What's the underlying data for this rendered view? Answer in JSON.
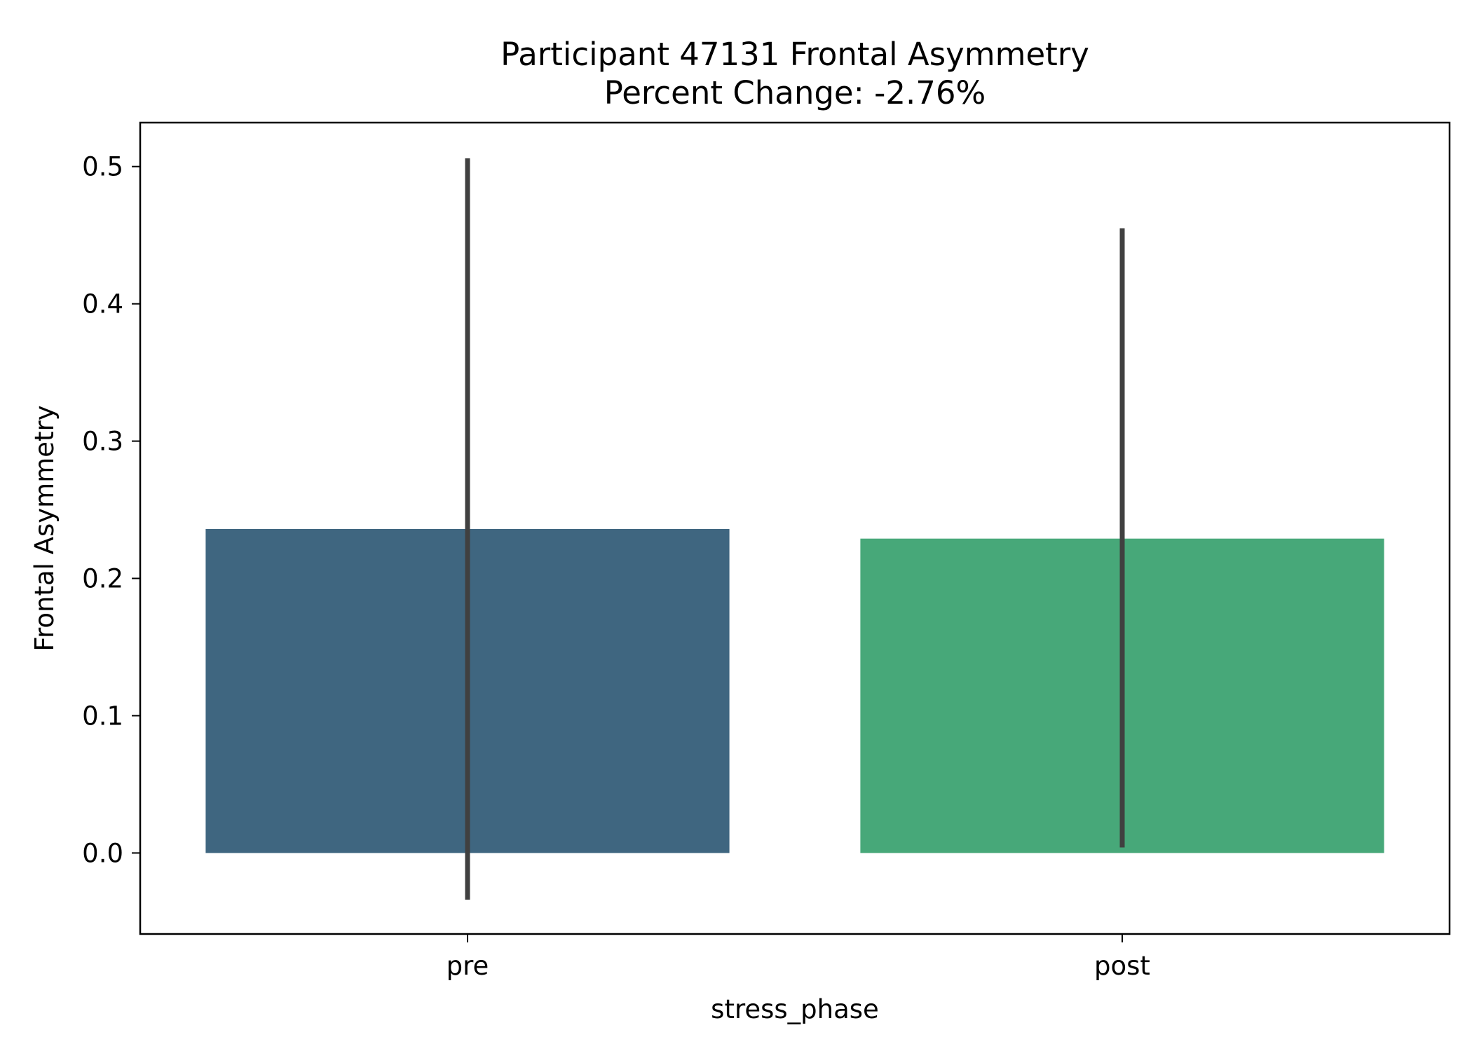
{
  "chart_data": {
    "type": "bar",
    "title": "Participant 47131 Frontal Asymmetry",
    "subtitle": "Percent Change: -2.76%",
    "xlabel": "stress_phase",
    "ylabel": "Frontal Asymmetry",
    "categories": [
      "pre",
      "post"
    ],
    "values": [
      0.236,
      0.229
    ],
    "error_bars": [
      {
        "low": -0.034,
        "high": 0.506
      },
      {
        "low": 0.004,
        "high": 0.455
      }
    ],
    "colors": [
      "#3f6680",
      "#47a879"
    ],
    "error_bar_color": "#404040",
    "ylim": [
      -0.059,
      0.532
    ],
    "yticks": [
      "0.0",
      "0.1",
      "0.2",
      "0.3",
      "0.4",
      "0.5"
    ],
    "grid": false,
    "legend": "none"
  }
}
